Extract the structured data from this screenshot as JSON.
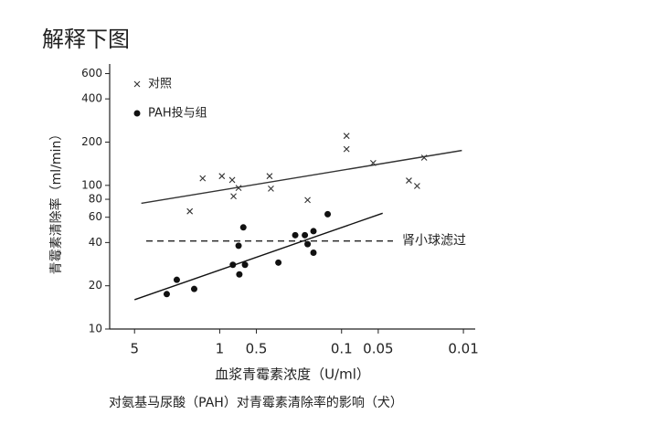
{
  "question": "解释下图",
  "chart_data": {
    "type": "scatter",
    "x_label": "血浆青霉素浓度（U/ml）",
    "y_label": "青霉素清除率（ml/min）",
    "caption": "对氨基马尿酸（PAH）对青霉素清除率的影响（犬）",
    "xscale": "log",
    "yscale": "log",
    "xlim": [
      8,
      0.008
    ],
    "ylim": [
      10,
      700
    ],
    "xticks": [
      5,
      1,
      0.5,
      0.1,
      0.05,
      0.01
    ],
    "yticks": [
      10,
      20,
      40,
      60,
      80,
      100,
      200,
      400,
      600
    ],
    "legend": "upper-left",
    "series": [
      {
        "name": "对照",
        "marker": "x",
        "color": "#333333",
        "x": [
          1.76,
          1.38,
          0.96,
          0.79,
          0.77,
          0.7,
          0.39,
          0.38,
          0.19,
          0.091,
          0.091,
          0.055,
          0.028,
          0.024,
          0.021
        ],
        "y": [
          66,
          112,
          116,
          109,
          84,
          96,
          116,
          95,
          79,
          221,
          179,
          143,
          108,
          99,
          156
        ],
        "fit": {
          "x": [
            4.4,
            0.0103
          ],
          "y": [
            75,
            175
          ]
        }
      },
      {
        "name": "PAH投与组",
        "marker": "circle",
        "color": "#111111",
        "x": [
          2.72,
          2.25,
          1.62,
          0.78,
          0.7,
          0.64,
          0.69,
          0.62,
          0.33,
          0.24,
          0.2,
          0.19,
          0.17,
          0.17,
          0.13
        ],
        "y": [
          17.5,
          22,
          19,
          28,
          38,
          51,
          24,
          28,
          29,
          45,
          45,
          39,
          34,
          48,
          63
        ],
        "fit": {
          "x": [
            5.0,
            0.046
          ],
          "y": [
            16,
            64
          ]
        }
      }
    ],
    "hline": {
      "value": 41,
      "label": "肾小球滤过",
      "style": "dashed"
    }
  }
}
